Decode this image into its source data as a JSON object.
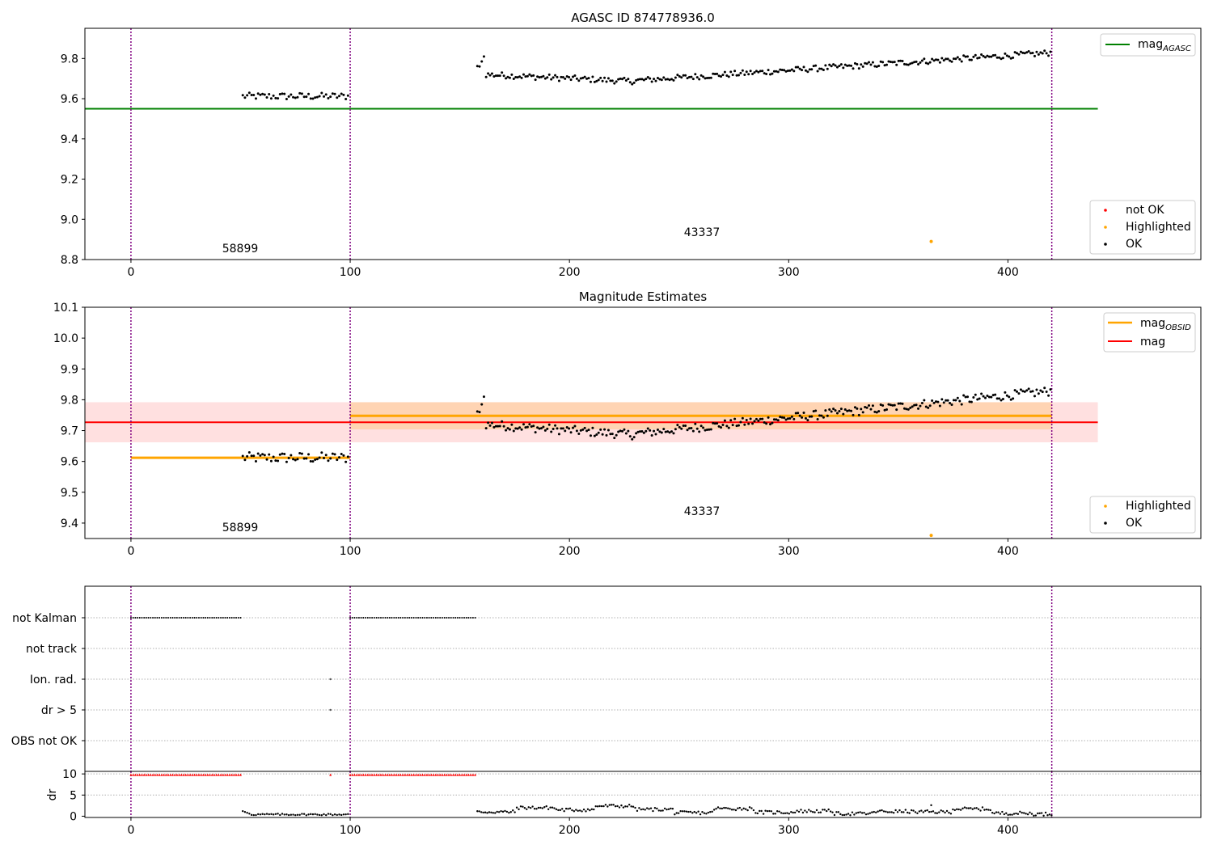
{
  "chart_data": [
    {
      "id": "top",
      "type": "scatter",
      "title": "AGASC ID 874778936.0",
      "xlim": [
        -21,
        488
      ],
      "ylim": [
        8.8,
        9.95
      ],
      "xticks": [
        0,
        100,
        200,
        300,
        400
      ],
      "yticks": [
        8.8,
        9.0,
        9.2,
        9.4,
        9.6,
        9.8
      ],
      "ytick_labels": [
        "8.8",
        "9.0",
        "9.2",
        "9.4",
        "9.6",
        "9.8"
      ],
      "grid": false,
      "vlines": [
        0,
        100,
        420
      ],
      "obs_labels": [
        {
          "text": "58899",
          "x": 50,
          "y": 8.85
        },
        {
          "text": "43337",
          "x": 260,
          "y": 8.93
        }
      ],
      "mag_agasc": 9.55,
      "mag_agasc_range": [
        -21,
        441
      ],
      "highlighted_points": [
        [
          365,
          8.89
        ]
      ],
      "legend_lines": {
        "label_main": "mag",
        "label_sub": "AGASC",
        "color": "#008000"
      },
      "legend_points": {
        "items": [
          "not OK",
          "Highlighted",
          "OK"
        ],
        "colors": [
          "#ff0000",
          "#ffa500",
          "#000000"
        ]
      }
    },
    {
      "id": "middle",
      "type": "scatter",
      "title": "Magnitude Estimates",
      "xlim": [
        -21,
        488
      ],
      "ylim": [
        9.35,
        10.1
      ],
      "xticks": [
        0,
        100,
        200,
        300,
        400
      ],
      "yticks": [
        9.4,
        9.5,
        9.6,
        9.7,
        9.8,
        9.9,
        10.0,
        10.1
      ],
      "ytick_labels": [
        "9.4",
        "9.5",
        "9.6",
        "9.7",
        "9.8",
        "9.9",
        "10.0",
        "10.1"
      ],
      "grid": false,
      "vlines": [
        0,
        100,
        420
      ],
      "obs_labels": [
        {
          "text": "58899",
          "x": 50,
          "y": 9.37
        },
        {
          "text": "43337",
          "x": 260,
          "y": 9.43
        }
      ],
      "mag": 9.727,
      "mag_band": [
        9.662,
        9.792
      ],
      "mag_range": [
        -21,
        441
      ],
      "mag_obsid": [
        {
          "x0": 0,
          "x1": 100,
          "value": 9.612
        },
        {
          "x0": 100,
          "x1": 420,
          "value": 9.748,
          "band": [
            9.704,
            9.792
          ]
        }
      ],
      "highlighted_points": [
        [
          365,
          9.36
        ]
      ],
      "legend_lines": {
        "items": [
          {
            "label_main": "mag",
            "label_sub": "OBSID",
            "color": "#ffa500"
          },
          {
            "label_main": "mag",
            "label_sub": "",
            "color": "#ff0000"
          }
        ]
      },
      "legend_points": {
        "items": [
          "Highlighted",
          "OK"
        ],
        "colors": [
          "#ffa500",
          "#000000"
        ]
      }
    },
    {
      "id": "flags",
      "type": "scatter",
      "xlim": [
        -21,
        488
      ],
      "categories": [
        "not Kalman",
        "not track",
        "Ion. rad.",
        "dr > 5",
        "OBS not OK"
      ],
      "flag_segments": [
        {
          "category": "not Kalman",
          "ranges": [
            [
              0,
              50
            ],
            [
              100,
              157
            ]
          ]
        },
        {
          "category": "Ion. rad.",
          "points": [
            91
          ]
        },
        {
          "category": "dr > 5",
          "points": [
            91
          ]
        }
      ],
      "vlines": [
        0,
        100,
        420
      ]
    },
    {
      "id": "dr",
      "type": "scatter",
      "ylabel": "dr",
      "xlim": [
        -21,
        488
      ],
      "ylim": [
        -0.3,
        10.6
      ],
      "xticks": [
        0,
        100,
        200,
        300,
        400
      ],
      "yticks": [
        0,
        5,
        10
      ],
      "ytick_labels": [
        "0",
        "5",
        "10"
      ],
      "red_ranges": [
        [
          0,
          50
        ],
        [
          100,
          157
        ]
      ],
      "red_points": [
        91
      ],
      "red_value": 9.8,
      "vlines": [
        0,
        100,
        420
      ]
    }
  ],
  "series_colors": {
    "ok": "#000000",
    "highlighted": "#ffa500",
    "not_ok": "#ff0000",
    "vline": "#800080"
  }
}
